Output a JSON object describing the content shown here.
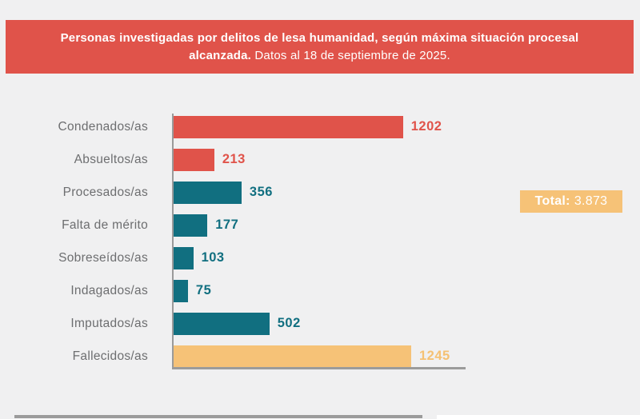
{
  "header": {
    "title_bold": "Personas investigadas por delitos de lesa humanidad, según máxima situación procesal alcanzada.",
    "title_regular": "Datos al 18 de septiembre de 2025."
  },
  "total": {
    "label": "Total:",
    "value": "3.873"
  },
  "colors": {
    "banner_background": "#e0534a",
    "bar_red": "#e0534a",
    "bar_teal": "#116f80",
    "bar_orange": "#f6c277",
    "label_gray": "#6d6e70",
    "axis_gray": "#9b9b9b",
    "page_background": "#f0f0f1",
    "badge_background": "#f6c277"
  },
  "chart_data": {
    "type": "bar",
    "orientation": "horizontal",
    "title": "Personas investigadas por delitos de lesa humanidad, según máxima situación procesal alcanzada. Datos al 18 de septiembre de 2025.",
    "categories": [
      "Condenados/as",
      "Absueltos/as",
      "Procesados/as",
      "Falta de mérito",
      "Sobreseídos/as",
      "Indagados/as",
      "Imputados/as",
      "Fallecidos/as"
    ],
    "values": [
      1202,
      213,
      356,
      177,
      103,
      75,
      502,
      1245
    ],
    "bar_colors": [
      "#e0534a",
      "#e0534a",
      "#116f80",
      "#116f80",
      "#116f80",
      "#116f80",
      "#116f80",
      "#f6c277"
    ],
    "value_label_colors": [
      "#e0534a",
      "#e0534a",
      "#116f80",
      "#116f80",
      "#116f80",
      "#116f80",
      "#116f80",
      "#f5c173"
    ],
    "xlabel": "",
    "ylabel": "",
    "xlim": [
      0,
      1530
    ],
    "grid": false,
    "legend": false,
    "data_labels": true,
    "total": 3873
  }
}
